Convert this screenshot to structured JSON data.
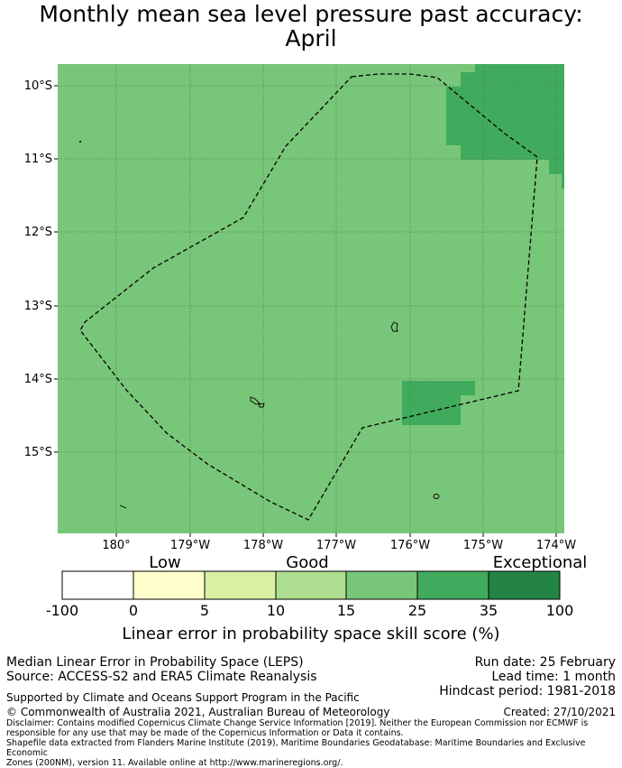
{
  "title": {
    "line1": "Monthly mean sea level pressure past accuracy:",
    "line2": "April"
  },
  "map": {
    "lat_ticks": [
      "10°S",
      "11°S",
      "12°S",
      "13°S",
      "14°S",
      "15°S"
    ],
    "lon_ticks": [
      "180°",
      "179°W",
      "178°W",
      "177°W",
      "176°W",
      "175°W",
      "174°W"
    ],
    "extent": {
      "lon_min": 179.2,
      "lon_max": 186.1,
      "lat_min": -16.1,
      "lat_max": -9.7
    },
    "colors": {
      "good": "#78c679",
      "better": "#41ab5d",
      "boundary": "#000000"
    }
  },
  "colorbar": {
    "category_labels": {
      "low": "Low",
      "good": "Good",
      "exceptional": "Exceptional"
    },
    "ticks": [
      "-100",
      "0",
      "5",
      "10",
      "15",
      "25",
      "35",
      "100"
    ],
    "colors": [
      "#ffffff",
      "#ffffcc",
      "#d9f0a3",
      "#addd8e",
      "#78c679",
      "#41ab5d",
      "#238443"
    ],
    "label": "Linear error in probability space skill score (%)"
  },
  "footer": {
    "left1": "Median Linear Error in Probability Space (LEPS)",
    "left2": "Source: ACCESS-S2 and ERA5 Climate Reanalysis",
    "right1": "Run date: 25 February",
    "right2": "Lead time: 1 month",
    "right3": "Hindcast period: 1981-2018",
    "support": "Supported by Climate and Oceans Support Program in the Pacific",
    "copyright": "© Commonwealth of Australia 2021, Australian Bureau of Meteorology",
    "created": "Created: 27/10/2021",
    "disclaimer1": "Disclaimer: Contains modified Copernicus Climate Change Service Information [2019]. Neither the European Commission nor ECMWF is",
    "disclaimer2": "responsible for any use that may be made of the Copernicus Information or Data it contains.",
    "disclaimer3": "Shapefile data extracted from Flanders Marine Institute (2019), Maritime Boundaries Geodatabase: Maritime Boundaries and Exclusive Economic",
    "disclaimer4": "Zones (200NM), version 11. Available online at http://www.marineregions.org/."
  }
}
